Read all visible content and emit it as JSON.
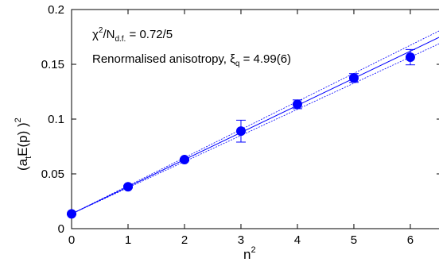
{
  "chart_data": {
    "type": "scatter",
    "xlabel": {
      "base": "n",
      "sup": "2"
    },
    "ylabel": {
      "open": "(a",
      "sub": "t",
      "mid": "E(p) )",
      "sup": "2"
    },
    "xlim": [
      0,
      6.55
    ],
    "ylim": [
      0,
      0.2
    ],
    "x_ticks": [
      0,
      1,
      2,
      3,
      4,
      5,
      6
    ],
    "y_ticks": [
      0,
      0.05,
      0.1,
      0.15,
      0.2
    ],
    "y_tick_labels": [
      "0",
      "0.05",
      "0.1",
      "0.15",
      "0.2"
    ],
    "grid": false,
    "series": [
      {
        "color": "#0000ff",
        "points": [
          {
            "x": 0,
            "y": 0.0135,
            "err": 0.0008
          },
          {
            "x": 1,
            "y": 0.0382,
            "err": 0.001
          },
          {
            "x": 2,
            "y": 0.063,
            "err": 0.001
          },
          {
            "x": 3,
            "y": 0.089,
            "err": 0.01
          },
          {
            "x": 4,
            "y": 0.1135,
            "err": 0.004
          },
          {
            "x": 5,
            "y": 0.1375,
            "err": 0.004
          },
          {
            "x": 6,
            "y": 0.1565,
            "err": 0.007
          }
        ]
      }
    ],
    "fit": {
      "intercept": 0.0135,
      "slope": 0.02475,
      "band_slope": 0.0009,
      "color": "#0000ff"
    },
    "annotations": {
      "chi_symbol": "χ",
      "chi_sup": "2",
      "chi_slash": "/N",
      "chi_sub": "d.f.",
      "chi_value": " = 0.72/5",
      "aniso_text": "Renormalised anisotropy, ",
      "aniso_symbol": "ξ",
      "aniso_sub": "q",
      "aniso_value": " = 4.99(6)"
    }
  }
}
